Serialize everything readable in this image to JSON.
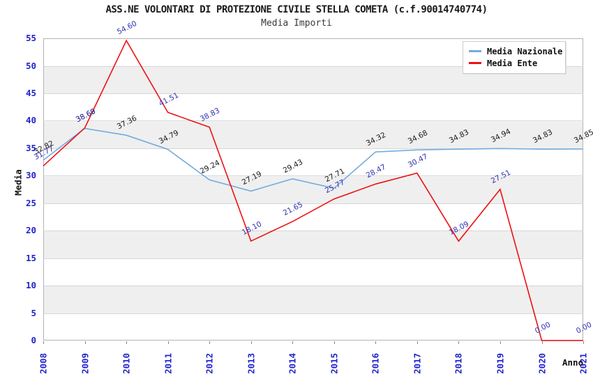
{
  "title": "ASS.NE VOLONTARI DI PROTEZIONE CIVILE STELLA COMETA (c.f.90014740774)",
  "subtitle": "Media Importi",
  "legend": {
    "items": [
      {
        "label": "Media Nazionale",
        "color": "#74ABDF"
      },
      {
        "label": "Media Ente",
        "color": "#EE1111"
      }
    ]
  },
  "axes": {
    "y_label": "Media",
    "x_label": "Anno",
    "y_ticks": [
      0,
      5,
      10,
      15,
      20,
      25,
      30,
      35,
      40,
      45,
      50,
      55
    ],
    "tick_color": "#2222CC"
  },
  "chart_data": {
    "type": "line",
    "title": "ASS.NE VOLONTARI DI PROTEZIONE CIVILE STELLA COMETA (c.f.90014740774)",
    "subtitle": "Media Importi",
    "xlabel": "Anno",
    "ylabel": "Media",
    "ylim": [
      0,
      55
    ],
    "grid": true,
    "legend_position": "top-right",
    "band_colors": [
      "#FFFFFF",
      "#EFEFEF"
    ],
    "x": [
      2008,
      2009,
      2010,
      2011,
      2012,
      2013,
      2014,
      2015,
      2016,
      2017,
      2018,
      2019,
      2020,
      2021
    ],
    "series": [
      {
        "name": "Media Nazionale",
        "color": "#74ABDF",
        "label_color": "#1A1A1A",
        "values": [
          32.82,
          38.6,
          37.36,
          34.79,
          29.24,
          27.19,
          29.43,
          27.71,
          34.32,
          34.68,
          34.83,
          34.94,
          34.83,
          34.85
        ]
      },
      {
        "name": "Media Ente",
        "color": "#EE1111",
        "label_color": "#3232B4",
        "values": [
          31.77,
          38.69,
          54.6,
          41.51,
          38.83,
          18.1,
          21.65,
          25.77,
          28.47,
          30.47,
          18.09,
          27.51,
          0.0,
          0.0
        ]
      }
    ]
  }
}
